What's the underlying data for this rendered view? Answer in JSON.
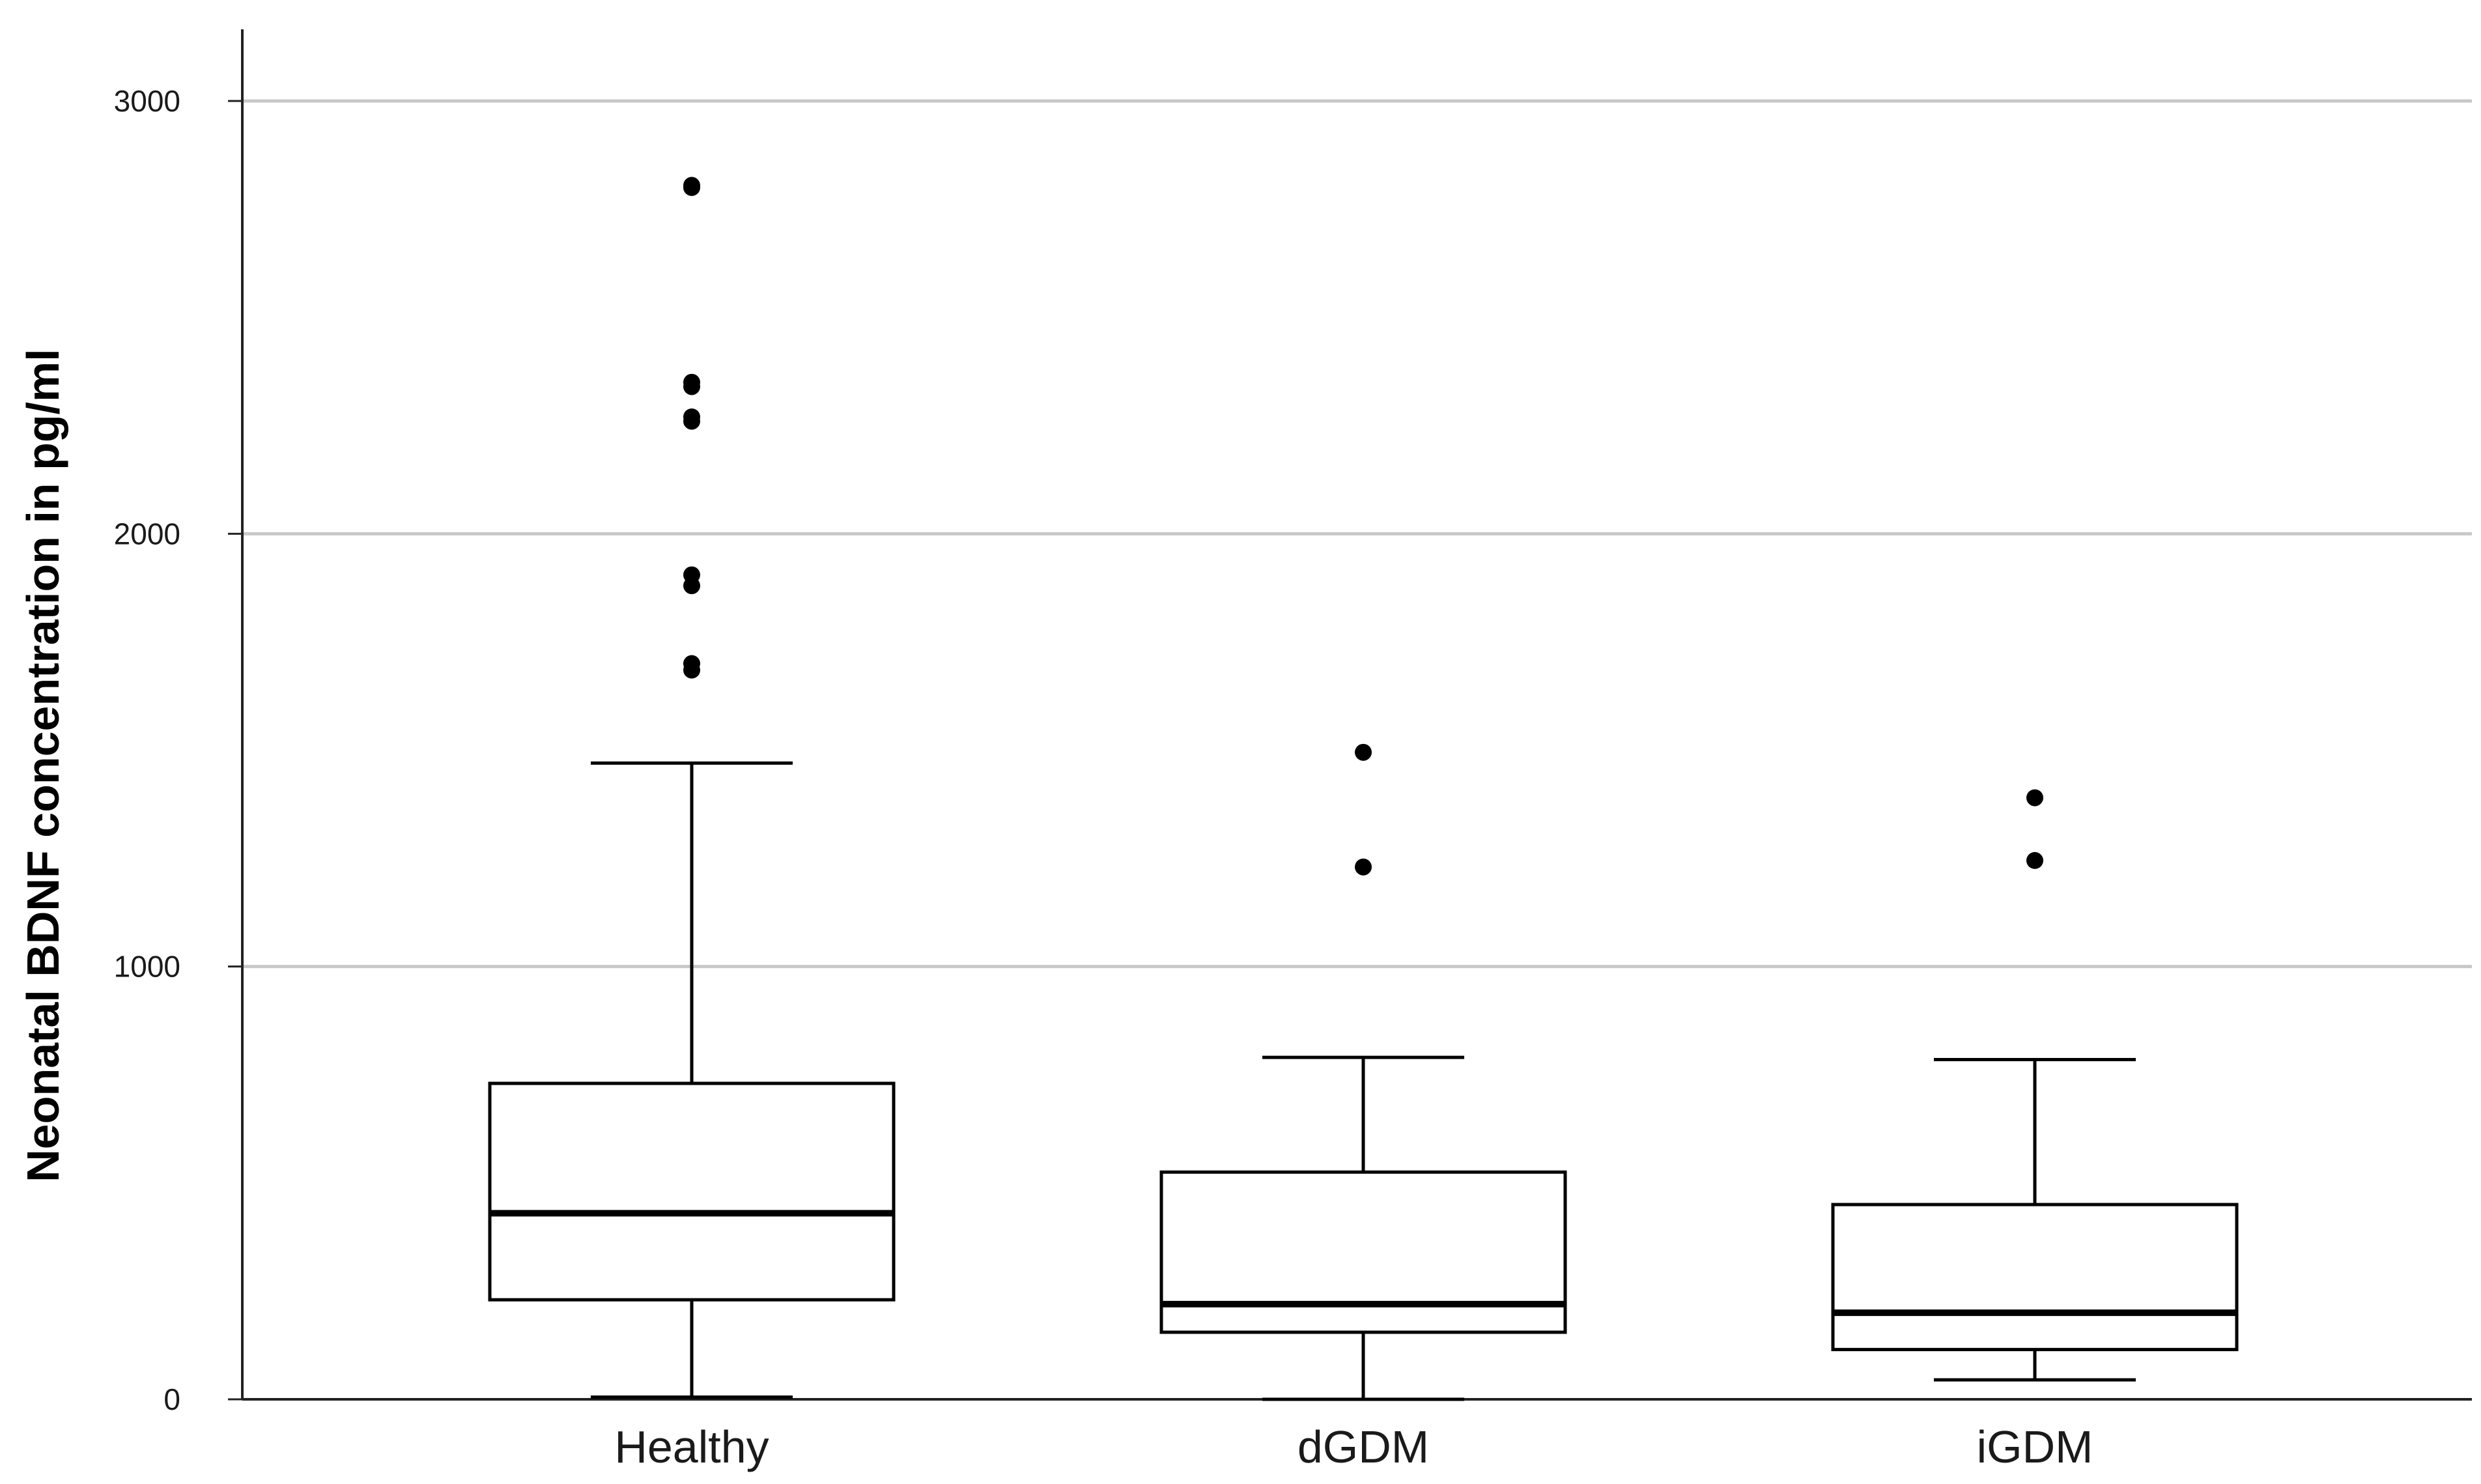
{
  "chart_data": {
    "type": "box",
    "title": "",
    "xlabel": "",
    "ylabel": "Neonatal BDNF concentration in pg/ml",
    "ylim": [
      0,
      3170
    ],
    "yticks": [
      0,
      1000,
      2000,
      3000
    ],
    "ytick_labels": [
      "0",
      "1000",
      "2000",
      "3000"
    ],
    "grid": true,
    "categories": [
      "Healthy",
      "dGDM",
      "iGDM"
    ],
    "boxes": [
      {
        "category": "Healthy",
        "whisker_low": 5,
        "q1": 230,
        "median": 430,
        "q3": 730,
        "whisker_high": 1470,
        "outliers": [
          2805,
          2800,
          2350,
          2340,
          2270,
          2260,
          1905,
          1880,
          1700,
          1685
        ]
      },
      {
        "category": "dGDM",
        "whisker_low": 0,
        "q1": 155,
        "median": 220,
        "q3": 525,
        "whisker_high": 790,
        "outliers": [
          1495,
          1230
        ]
      },
      {
        "category": "iGDM",
        "whisker_low": 45,
        "q1": 115,
        "median": 200,
        "q3": 450,
        "whisker_high": 785,
        "outliers": [
          1390,
          1245
        ]
      }
    ],
    "colors": {
      "box_fill": "#ffffff",
      "box_stroke": "#000000",
      "grid": "#c8c8c8",
      "outlier": "#000000"
    }
  }
}
